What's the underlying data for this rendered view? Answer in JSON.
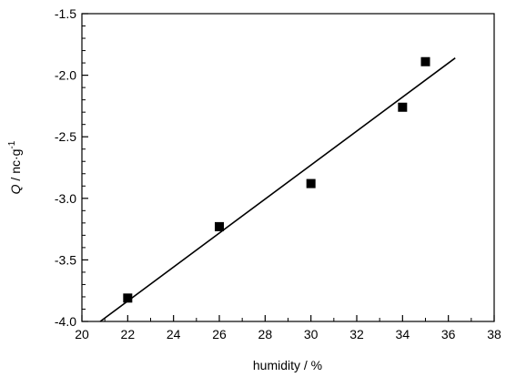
{
  "chart_data": {
    "type": "scatter",
    "xlabel": "humidity / %",
    "ylabel": {
      "symbol": "Q",
      "unit": " / nc·g",
      "exponent": "-1"
    },
    "xlim": [
      20,
      38
    ],
    "ylim": [
      -4.0,
      -1.5
    ],
    "x_ticks": [
      20,
      22,
      24,
      26,
      28,
      30,
      32,
      34,
      36,
      38
    ],
    "x_tick_labels": [
      "20",
      "22",
      "24",
      "26",
      "28",
      "30",
      "32",
      "34",
      "36",
      "38"
    ],
    "y_ticks": [
      -4.0,
      -3.5,
      -3.0,
      -2.5,
      -2.0,
      -1.5
    ],
    "y_tick_labels": [
      "-4.0",
      "-3.5",
      "-3.0",
      "-2.5",
      "-2.0",
      "-1.5"
    ],
    "grid": false,
    "series": [
      {
        "type": "scatter",
        "marker": "square",
        "color": "#000000",
        "points": [
          {
            "x": 22,
            "y": -3.81
          },
          {
            "x": 26,
            "y": -3.23
          },
          {
            "x": 30,
            "y": -2.88
          },
          {
            "x": 34,
            "y": -2.26
          },
          {
            "x": 35,
            "y": -1.89
          }
        ]
      },
      {
        "type": "line",
        "color": "#000000",
        "points": [
          {
            "x": 20.8,
            "y": -4.0
          },
          {
            "x": 36.3,
            "y": -1.86
          }
        ]
      }
    ]
  }
}
